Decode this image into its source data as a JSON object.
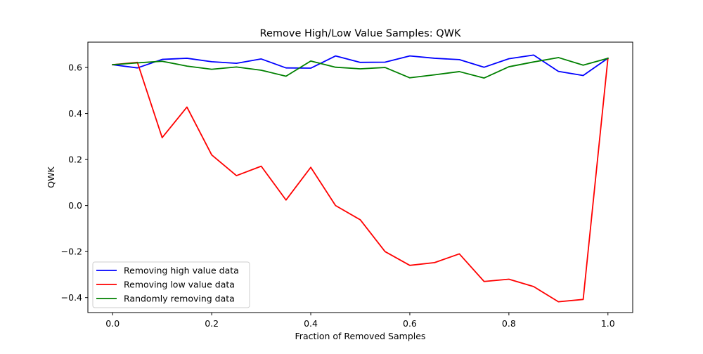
{
  "chart_data": {
    "type": "line",
    "title": "Remove High/Low Value Samples: QWK",
    "xlabel": "Fraction of Removed Samples",
    "ylabel": "QWK",
    "xlim": [
      -0.05,
      1.05
    ],
    "ylim": [
      -0.465,
      0.71
    ],
    "xticks": [
      0.0,
      0.2,
      0.4,
      0.6,
      0.8,
      1.0
    ],
    "xtick_labels": [
      "0.0",
      "0.2",
      "0.4",
      "0.6",
      "0.8",
      "1.0"
    ],
    "yticks": [
      -0.4,
      -0.2,
      0.0,
      0.2,
      0.4,
      0.6
    ],
    "ytick_labels": [
      "−0.4",
      "−0.2",
      "0.0",
      "0.2",
      "0.4",
      "0.6"
    ],
    "grid": false,
    "legend_position": "lower-left",
    "x": [
      0.0,
      0.05,
      0.1,
      0.15,
      0.2,
      0.25,
      0.3,
      0.35,
      0.4,
      0.45,
      0.5,
      0.55,
      0.6,
      0.65,
      0.7,
      0.75,
      0.8,
      0.85,
      0.9,
      0.95,
      1.0
    ],
    "series": [
      {
        "name": "Removing high value data",
        "color": "#0000ff",
        "values": [
          0.612,
          0.598,
          0.635,
          0.64,
          0.625,
          0.618,
          0.637,
          0.598,
          0.597,
          0.65,
          0.622,
          0.623,
          0.65,
          0.64,
          0.634,
          0.601,
          0.638,
          0.654,
          0.583,
          0.565,
          0.64
        ]
      },
      {
        "name": "Removing low value data",
        "color": "#ff0000",
        "values": [
          0.612,
          0.622,
          0.295,
          0.428,
          0.22,
          0.13,
          0.171,
          0.024,
          0.166,
          0.0,
          -0.062,
          -0.2,
          -0.26,
          -0.248,
          -0.21,
          -0.33,
          -0.32,
          -0.352,
          -0.418,
          -0.408,
          0.64
        ]
      },
      {
        "name": "Randomly removing data",
        "color": "#008000",
        "values": [
          0.612,
          0.62,
          0.627,
          0.606,
          0.592,
          0.602,
          0.588,
          0.562,
          0.628,
          0.601,
          0.594,
          0.6,
          0.555,
          0.568,
          0.582,
          0.554,
          0.603,
          0.624,
          0.643,
          0.61,
          0.64
        ]
      }
    ]
  }
}
